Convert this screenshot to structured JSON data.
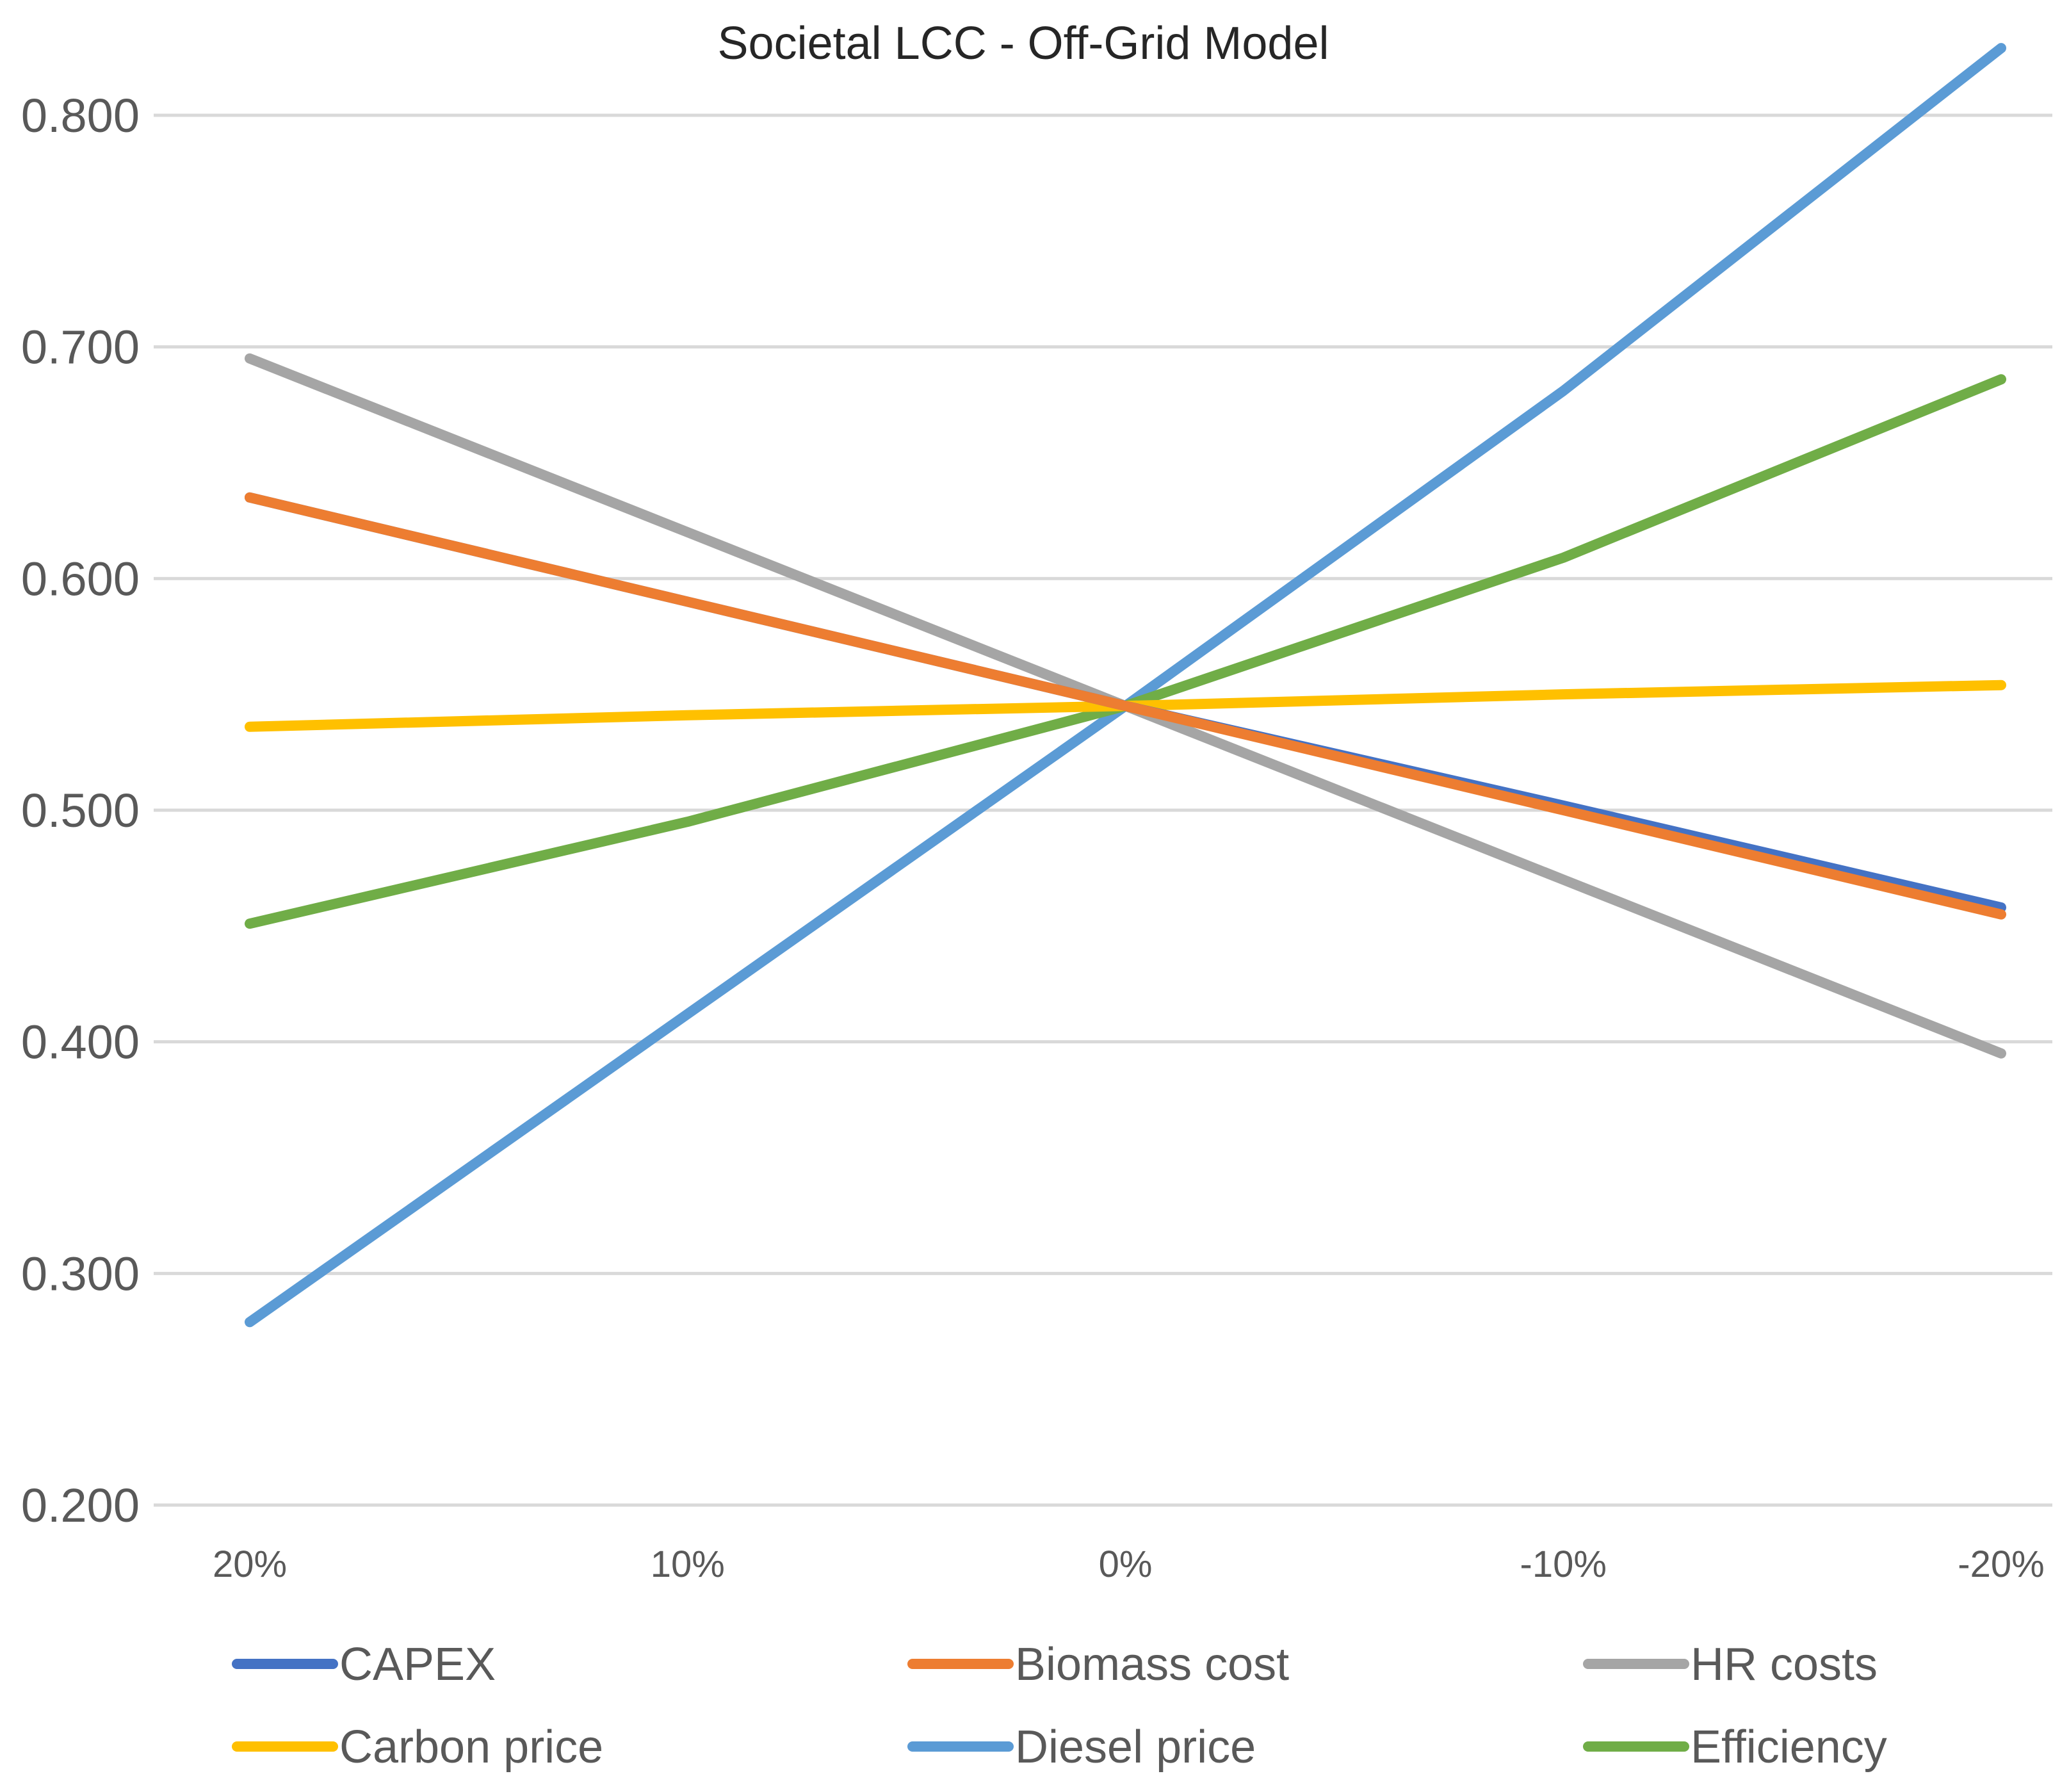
{
  "chart_data": {
    "type": "line",
    "title": "Societal LCC - Off-Grid Model",
    "xlabel": "",
    "ylabel": "",
    "categories": [
      "20%",
      "10%",
      "0%",
      "-10%",
      "-20%"
    ],
    "ylim": [
      0.2,
      0.8
    ],
    "yticks": [
      "0.200",
      "0.300",
      "0.400",
      "0.500",
      "0.600",
      "0.700",
      "0.800"
    ],
    "grid": true,
    "legend_position": "bottom",
    "series": [
      {
        "name": "CAPEX",
        "color": "#4472C4",
        "values": [
          0.635,
          0.59,
          0.545,
          0.502,
          0.458
        ]
      },
      {
        "name": "Biomass cost",
        "color": "#ED7D31",
        "values": [
          0.635,
          0.59,
          0.545,
          0.5,
          0.455
        ]
      },
      {
        "name": "HR costs",
        "color": "#A5A5A5",
        "values": [
          0.695,
          0.62,
          0.545,
          0.47,
          0.395
        ]
      },
      {
        "name": "Carbon price",
        "color": "#FFC000",
        "values": [
          0.536,
          0.541,
          0.545,
          0.55,
          0.554
        ]
      },
      {
        "name": "Diesel price",
        "color": "#5B9BD5",
        "values": [
          0.279,
          0.412,
          0.545,
          0.681,
          0.829
        ]
      },
      {
        "name": "Efficiency",
        "color": "#70AD47",
        "values": [
          0.451,
          0.495,
          0.545,
          0.609,
          0.686
        ]
      }
    ]
  }
}
